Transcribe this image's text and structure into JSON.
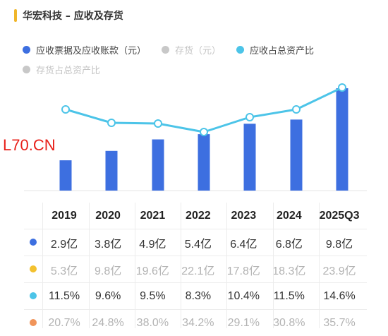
{
  "title": "华宏科技 – 应收及存货",
  "legend": [
    {
      "label": "应收票据及应收账款（元）",
      "color": "#3d6fe0",
      "dim": false
    },
    {
      "label": "存货（元）",
      "color": "#c8c8c8",
      "dim": true
    },
    {
      "label": "应收占总资产比",
      "color": "#4cc4e8",
      "dim": false
    },
    {
      "label": "存货占总资产比",
      "color": "#c8c8c8",
      "dim": true
    }
  ],
  "watermark": "L70.CN",
  "chart_data": {
    "type": "bar",
    "categories": [
      "2019",
      "2020",
      "2021",
      "2022",
      "2023",
      "2024",
      "2025Q3"
    ],
    "series": [
      {
        "name": "应收票据及应收账款（元）",
        "type": "bar",
        "unit": "亿",
        "values": [
          2.9,
          3.8,
          4.9,
          5.4,
          6.4,
          6.8,
          9.8
        ],
        "color": "#3d6fe0"
      },
      {
        "name": "应收占总资产比",
        "type": "line",
        "unit": "%",
        "values": [
          11.5,
          9.6,
          9.5,
          8.3,
          10.4,
          11.5,
          14.6
        ],
        "color": "#4cc4e8"
      },
      {
        "name": "存货（元）",
        "type": "bar",
        "hidden": true,
        "unit": "亿",
        "values": [
          5.3,
          9.8,
          19.6,
          22.1,
          17.8,
          18.3,
          23.9
        ]
      },
      {
        "name": "存货占总资产比",
        "type": "line",
        "hidden": true,
        "unit": "%",
        "values": [
          20.7,
          24.8,
          38.0,
          34.2,
          29.1,
          30.8,
          35.7
        ]
      }
    ]
  },
  "table": {
    "years": [
      "2019",
      "2020",
      "2021",
      "2022",
      "2023",
      "2024",
      "2025Q3"
    ],
    "rows": [
      {
        "color": "#3d6fe0",
        "dim": false,
        "cells": [
          "2.9亿",
          "3.8亿",
          "4.9亿",
          "5.4亿",
          "6.4亿",
          "6.8亿",
          "9.8亿"
        ]
      },
      {
        "color": "#f3c12f",
        "dim": true,
        "cells": [
          "5.3亿",
          "9.8亿",
          "19.6亿",
          "22.1亿",
          "17.8亿",
          "18.3亿",
          "23.9亿"
        ]
      },
      {
        "color": "#4cc4e8",
        "dim": false,
        "cells": [
          "11.5%",
          "9.6%",
          "9.5%",
          "8.3%",
          "10.4%",
          "11.5%",
          "14.6%"
        ]
      },
      {
        "color": "#f0945a",
        "dim": true,
        "cells": [
          "20.7%",
          "24.8%",
          "38.0%",
          "34.2%",
          "29.1%",
          "30.8%",
          "35.7%"
        ]
      }
    ]
  }
}
